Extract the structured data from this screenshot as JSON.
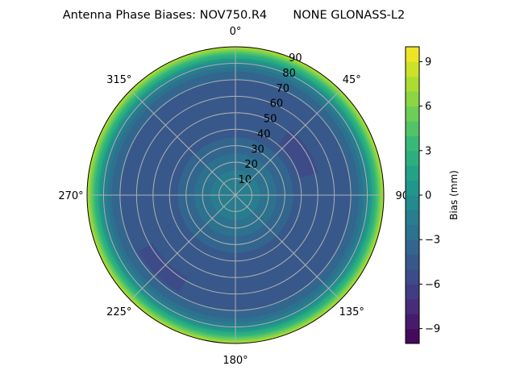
{
  "chart_data": {
    "type": "heatmap",
    "subtype": "polar-contour",
    "title": "Antenna Phase Biases: NOV750.R4       NONE GLONASS-L2",
    "angular_ticks": [
      "0°",
      "45°",
      "90°",
      "135°",
      "180°",
      "225°",
      "270°",
      "315°"
    ],
    "radial_ticks": [
      "10",
      "20",
      "30",
      "40",
      "50",
      "60",
      "70",
      "80",
      "90"
    ],
    "radial_range": [
      0,
      90
    ],
    "colorbar": {
      "label": "Bias (mm)",
      "range": [
        -10,
        10
      ],
      "levels": 20,
      "ticks": [
        "−9",
        "−6",
        "−3",
        "0",
        "3",
        "6",
        "9"
      ],
      "tick_values": [
        -9,
        -6,
        -3,
        0,
        3,
        6,
        9
      ],
      "colormap": "viridis"
    },
    "radial_profile": {
      "zenith_deg": [
        0,
        10,
        20,
        30,
        40,
        50,
        60,
        70,
        75,
        80,
        85,
        90
      ],
      "bias_mm": [
        -1,
        -1.5,
        -2.5,
        -3.5,
        -4.5,
        -5,
        -5,
        -4,
        -3,
        -1,
        3,
        8
      ]
    },
    "low_patches": [
      {
        "azimuth_deg_range": [
          40,
          75
        ],
        "zenith_deg_range": [
          40,
          52
        ],
        "bias_mm": -6
      },
      {
        "azimuth_deg_range": [
          210,
          240
        ],
        "zenith_deg_range": [
          58,
          68
        ],
        "bias_mm": -6
      }
    ],
    "grid": true
  }
}
